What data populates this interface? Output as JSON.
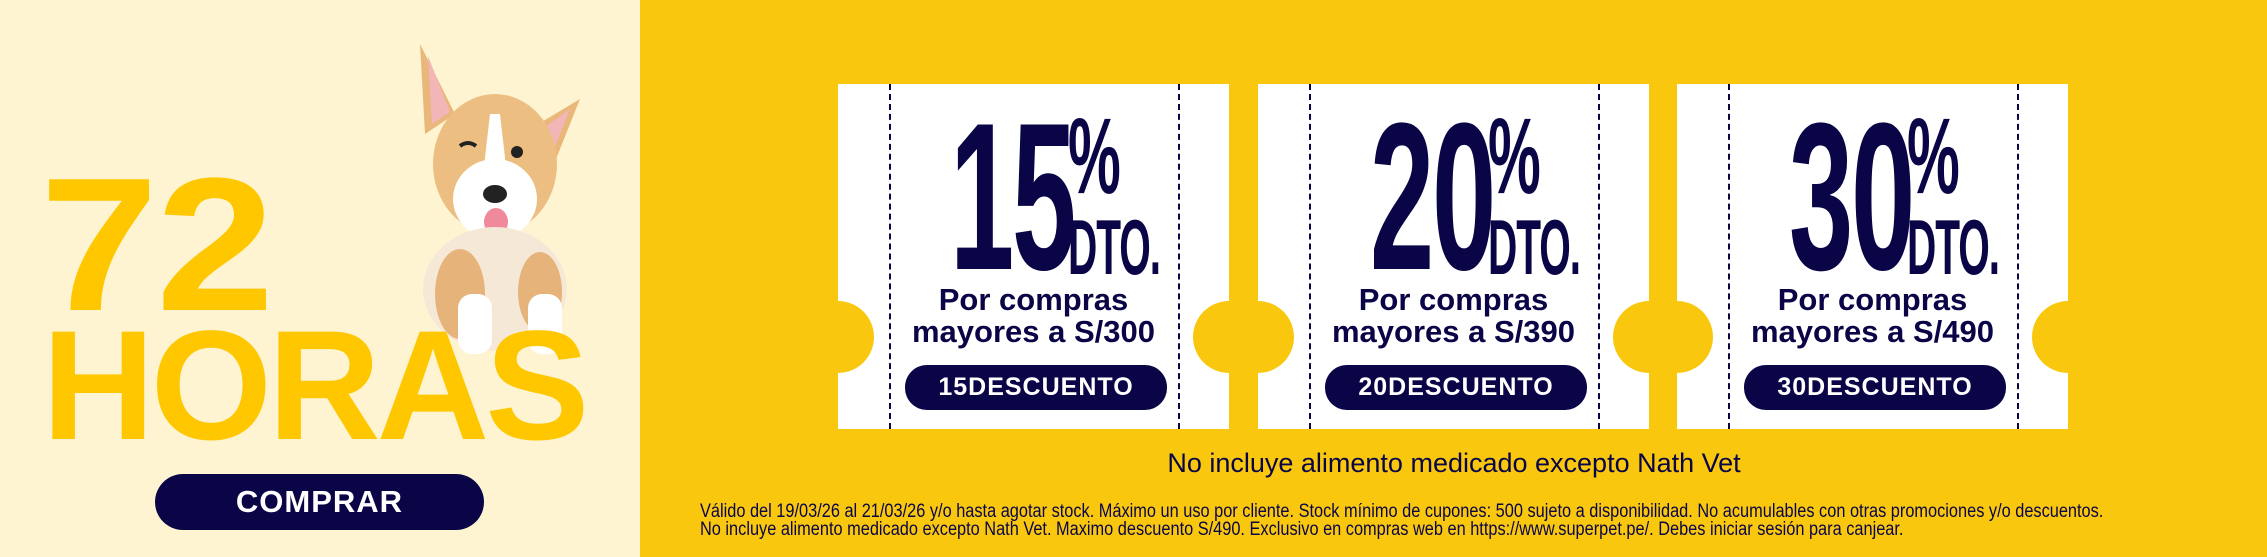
{
  "promo": {
    "headline_number": "72",
    "headline_word": "HORAS",
    "cta_label": "COMPRAR",
    "image": "corgi-puppy"
  },
  "coupons": [
    {
      "percent": "15",
      "symbol": "%",
      "suffix": "DTO.",
      "line1": "Por compras",
      "line2": "mayores a S/300",
      "code": "15DESCUENTO"
    },
    {
      "percent": "20",
      "symbol": "%",
      "suffix": "DTO.",
      "line1": "Por compras",
      "line2": "mayores a S/390",
      "code": "20DESCUENTO"
    },
    {
      "percent": "30",
      "symbol": "%",
      "suffix": "DTO.",
      "line1": "Por compras",
      "line2": "mayores a S/490",
      "code": "30DESCUENTO"
    }
  ],
  "note": "No incluye alimento medicado excepto Nath Vet",
  "fine_print": {
    "line1": "Válido del 19/03/26 al 21/03/26 y/o hasta agotar stock. Máximo un uso por cliente. Stock mínimo de cupones: 500 sujeto a disponibilidad. No acumulables con otras promociones y/o descuentos.",
    "line2": "No incluye alimento medicado excepto Nath Vet. Maximo descuento S/490. Exclusivo en compras web en https://www.superpet.pe/. Debes iniciar sesión para canjear."
  },
  "colors": {
    "navy": "#0A0546",
    "yellow": "#F9C80E",
    "cream": "#FEF4D2",
    "headline": "#FFC700"
  }
}
